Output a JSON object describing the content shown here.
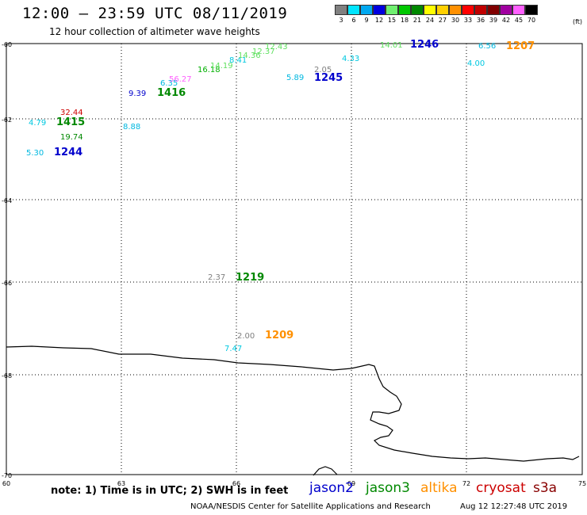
{
  "title": "12:00 – 23:59 UTC 08/11/2019",
  "subtitle": "12 hour collection of altimeter wave heights",
  "scale": {
    "unit": "(ft)",
    "entries": [
      {
        "label": "3",
        "color": "#808080"
      },
      {
        "label": "6",
        "color": "#00e5ff"
      },
      {
        "label": "9",
        "color": "#00a8f0"
      },
      {
        "label": "12",
        "color": "#0000e0"
      },
      {
        "label": "15",
        "color": "#70f070"
      },
      {
        "label": "18",
        "color": "#00c800"
      },
      {
        "label": "21",
        "color": "#008800"
      },
      {
        "label": "24",
        "color": "#ffff00"
      },
      {
        "label": "27",
        "color": "#ffd000"
      },
      {
        "label": "30",
        "color": "#ff9000"
      },
      {
        "label": "33",
        "color": "#ff0000"
      },
      {
        "label": "36",
        "color": "#c00000"
      },
      {
        "label": "39",
        "color": "#800000"
      },
      {
        "label": "42",
        "color": "#a000a0"
      },
      {
        "label": "45",
        "color": "#ff60ff"
      },
      {
        "label": "70",
        "color": "#000000"
      }
    ]
  },
  "axes": {
    "lat_labels": [
      "-60",
      "-62",
      "-64",
      "-66",
      "-68",
      "-70"
    ],
    "lon_labels": [
      "60",
      "63",
      "66",
      "69",
      "72",
      "75"
    ]
  },
  "wave_heights": [
    {
      "text": "32.44",
      "color": "#cc0000"
    },
    {
      "text": "4.79",
      "color": "#00c8e0"
    },
    {
      "text": "1415",
      "color": "#008800",
      "bold": true
    },
    {
      "text": "19.74",
      "color": "#008800"
    },
    {
      "text": "5.30",
      "color": "#00b8e0"
    },
    {
      "text": "1244",
      "color": "#0000cc",
      "bold": true
    },
    {
      "text": "9.39",
      "color": "#0000cc"
    },
    {
      "text": "1416",
      "color": "#008800",
      "bold": true
    },
    {
      "text": "8.88",
      "color": "#00b8e0"
    },
    {
      "text": "6.35",
      "color": "#00b8e0"
    },
    {
      "text": "56.27",
      "color": "#ff60ff"
    },
    {
      "text": "16.18",
      "color": "#00b000"
    },
    {
      "text": "14.19",
      "color": "#60e060"
    },
    {
      "text": "8.41",
      "color": "#00c8e0"
    },
    {
      "text": "14.36",
      "color": "#60e060"
    },
    {
      "text": "12.37",
      "color": "#60e060"
    },
    {
      "text": "12.43",
      "color": "#60e060"
    },
    {
      "text": "2.05",
      "color": "#808080"
    },
    {
      "text": "5.89",
      "color": "#00b8e0"
    },
    {
      "text": "1245",
      "color": "#0000cc",
      "bold": true
    },
    {
      "text": "4.33",
      "color": "#00c8e0"
    },
    {
      "text": "14.01",
      "color": "#60e060"
    },
    {
      "text": "1246",
      "color": "#0000cc",
      "bold": true
    },
    {
      "text": "6.56",
      "color": "#00b8e0"
    },
    {
      "text": "1207",
      "color": "#ff9000",
      "bold": true
    },
    {
      "text": "4.00",
      "color": "#00c8e0"
    },
    {
      "text": "2.37",
      "color": "#808080"
    },
    {
      "text": "1219",
      "color": "#008800",
      "bold": true
    },
    {
      "text": "2.00",
      "color": "#808080"
    },
    {
      "text": "1209",
      "color": "#ff9000",
      "bold": true
    },
    {
      "text": "7.47",
      "color": "#00c8e0"
    }
  ],
  "note": "note: 1) Time is in UTC; 2) SWH is in feet",
  "satellites": [
    {
      "name": "jason2",
      "color": "#0000cc"
    },
    {
      "name": "jason3",
      "color": "#008800"
    },
    {
      "name": "altika",
      "color": "#ff9000"
    },
    {
      "name": "cryosat",
      "color": "#cc0000"
    },
    {
      "name": "s3a",
      "color": "#880000"
    }
  ],
  "footer": {
    "credit": "NOAA/NESDIS Center for Satellite Applications and Research",
    "generated": "Aug 12 12:27:48 UTC 2019"
  }
}
